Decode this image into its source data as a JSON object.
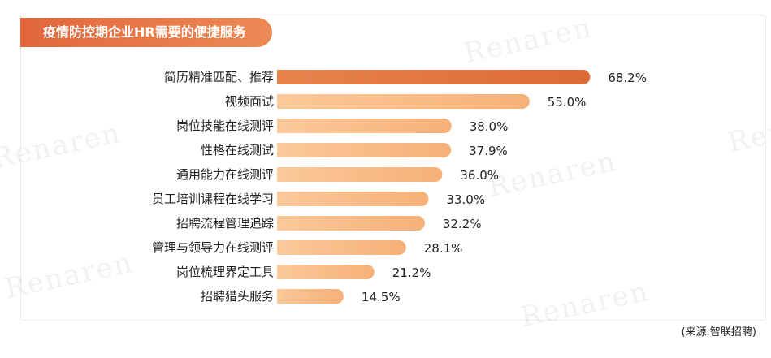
{
  "title": "疫情防控期企业HR需要的便捷服务",
  "source": "(来源:智联招聘)",
  "watermark": "Renaren",
  "colors": {
    "bar_top": "#e0743f",
    "bar_light": "#f7b57a",
    "bar_light_end": "#fbc99a",
    "title_bg": "#e2673a"
  },
  "chart_data": {
    "type": "bar",
    "orientation": "horizontal",
    "title": "疫情防控期企业HR需要的便捷服务",
    "categories": [
      "简历精准匹配、推荐",
      "视频面试",
      "岗位技能在线测评",
      "性格在线测试",
      "通用能力在线测评",
      "员工培训课程在线学习",
      "招聘流程管理追踪",
      "管理与领导力在线测评",
      "岗位梳理界定工具",
      "招聘猎头服务"
    ],
    "values": [
      68.2,
      55.0,
      38.0,
      37.9,
      36.0,
      33.0,
      32.2,
      28.1,
      21.2,
      14.5
    ],
    "value_labels": [
      "68.2%",
      "55.0%",
      "38.0%",
      "37.9%",
      "36.0%",
      "33.0%",
      "32.2%",
      "28.1%",
      "21.2%",
      "14.5%"
    ],
    "unit": "%",
    "xlim": [
      0,
      100
    ],
    "grid": false,
    "legend": "none"
  }
}
